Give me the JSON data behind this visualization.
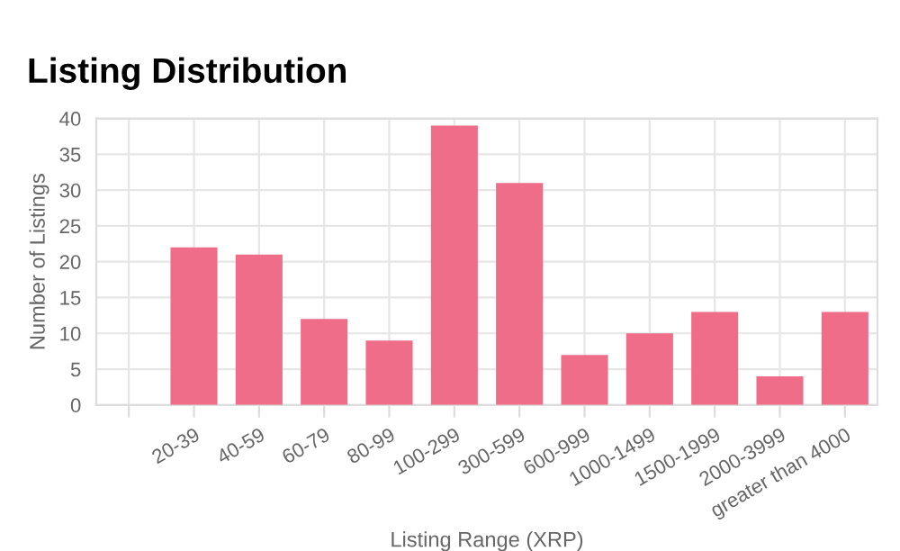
{
  "chart_data": {
    "type": "bar",
    "title": "Listing Distribution",
    "xlabel": "Listing Range (XRP)",
    "ylabel": "Number of Listings",
    "categories": [
      null,
      "20-39",
      "40-59",
      "60-79",
      "80-99",
      "100-299",
      "300-599",
      "600-999",
      "1000-1499",
      "1500-1999",
      "2000-3999",
      "greater than 4000"
    ],
    "values": [
      null,
      22,
      21,
      12,
      9,
      39,
      31,
      7,
      10,
      13,
      4,
      13
    ],
    "color": "#ef6d88",
    "ylim": [
      0,
      40
    ],
    "yticks": [
      0,
      5,
      10,
      15,
      20,
      25,
      30,
      35,
      40
    ],
    "grid": true
  }
}
